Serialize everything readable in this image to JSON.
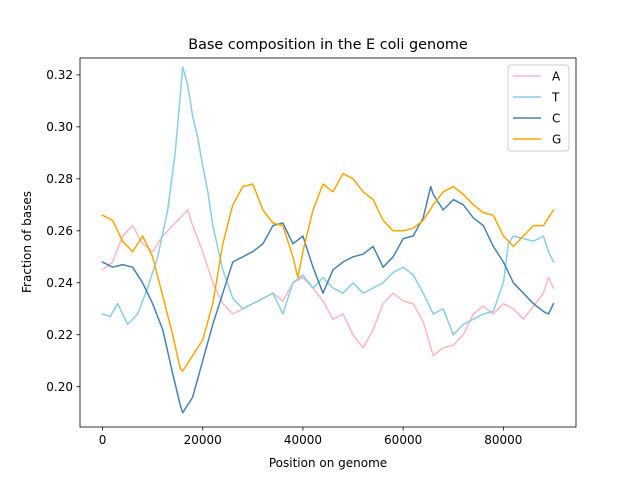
{
  "chart_data": {
    "type": "line",
    "title": "Base composition in the E coli genome",
    "xlabel": "Position on genome",
    "ylabel": "Fraction of bases",
    "xlim": [
      -4500,
      94500
    ],
    "ylim": [
      0.1845,
      0.3265
    ],
    "xticks": [
      0,
      20000,
      40000,
      60000,
      80000
    ],
    "yticks": [
      0.2,
      0.22,
      0.24,
      0.26,
      0.28,
      0.3,
      0.32
    ],
    "ytick_labels": [
      "0.20",
      "0.22",
      "0.24",
      "0.26",
      "0.28",
      "0.30",
      "0.32"
    ],
    "grid": false,
    "legend_position": "top-right",
    "series": [
      {
        "name": "A",
        "color": "#ffb6c1",
        "points": [
          [
            0,
            0.245
          ],
          [
            2000,
            0.248
          ],
          [
            4000,
            0.258
          ],
          [
            6000,
            0.262
          ],
          [
            8000,
            0.255
          ],
          [
            10000,
            0.252
          ],
          [
            12000,
            0.258
          ],
          [
            14000,
            0.262
          ],
          [
            16000,
            0.266
          ],
          [
            17000,
            0.268
          ],
          [
            18000,
            0.262
          ],
          [
            20000,
            0.252
          ],
          [
            22000,
            0.24
          ],
          [
            24000,
            0.232
          ],
          [
            26000,
            0.228
          ],
          [
            28000,
            0.23
          ],
          [
            30000,
            0.232
          ],
          [
            32000,
            0.234
          ],
          [
            34000,
            0.236
          ],
          [
            36000,
            0.233
          ],
          [
            38000,
            0.24
          ],
          [
            40000,
            0.242
          ],
          [
            42000,
            0.238
          ],
          [
            44000,
            0.233
          ],
          [
            46000,
            0.226
          ],
          [
            48000,
            0.228
          ],
          [
            50000,
            0.22
          ],
          [
            52000,
            0.215
          ],
          [
            54000,
            0.222
          ],
          [
            56000,
            0.232
          ],
          [
            58000,
            0.236
          ],
          [
            60000,
            0.233
          ],
          [
            62000,
            0.232
          ],
          [
            64000,
            0.225
          ],
          [
            66000,
            0.212
          ],
          [
            68000,
            0.215
          ],
          [
            70000,
            0.216
          ],
          [
            72000,
            0.22
          ],
          [
            74000,
            0.228
          ],
          [
            76000,
            0.231
          ],
          [
            78000,
            0.228
          ],
          [
            80000,
            0.232
          ],
          [
            82000,
            0.23
          ],
          [
            84000,
            0.226
          ],
          [
            86000,
            0.231
          ],
          [
            88000,
            0.236
          ],
          [
            89000,
            0.242
          ],
          [
            90000,
            0.238
          ]
        ]
      },
      {
        "name": "T",
        "color": "#87ceeb",
        "points": [
          [
            0,
            0.228
          ],
          [
            1500,
            0.227
          ],
          [
            3000,
            0.232
          ],
          [
            5000,
            0.224
          ],
          [
            7000,
            0.228
          ],
          [
            9000,
            0.238
          ],
          [
            11000,
            0.25
          ],
          [
            13000,
            0.268
          ],
          [
            14500,
            0.29
          ],
          [
            15500,
            0.312
          ],
          [
            16000,
            0.323
          ],
          [
            17000,
            0.316
          ],
          [
            18000,
            0.304
          ],
          [
            19000,
            0.296
          ],
          [
            20000,
            0.285
          ],
          [
            21000,
            0.275
          ],
          [
            22000,
            0.262
          ],
          [
            24000,
            0.245
          ],
          [
            26000,
            0.234
          ],
          [
            28000,
            0.23
          ],
          [
            30000,
            0.232
          ],
          [
            32000,
            0.234
          ],
          [
            34000,
            0.236
          ],
          [
            36000,
            0.228
          ],
          [
            38000,
            0.24
          ],
          [
            40000,
            0.243
          ],
          [
            42000,
            0.238
          ],
          [
            44000,
            0.242
          ],
          [
            46000,
            0.238
          ],
          [
            48000,
            0.236
          ],
          [
            50000,
            0.24
          ],
          [
            52000,
            0.236
          ],
          [
            54000,
            0.238
          ],
          [
            56000,
            0.24
          ],
          [
            58000,
            0.244
          ],
          [
            60000,
            0.246
          ],
          [
            62000,
            0.243
          ],
          [
            64000,
            0.236
          ],
          [
            66000,
            0.228
          ],
          [
            68000,
            0.23
          ],
          [
            70000,
            0.22
          ],
          [
            72000,
            0.224
          ],
          [
            74000,
            0.226
          ],
          [
            76000,
            0.228
          ],
          [
            78000,
            0.229
          ],
          [
            80000,
            0.24
          ],
          [
            81000,
            0.255
          ],
          [
            82000,
            0.258
          ],
          [
            84000,
            0.257
          ],
          [
            86000,
            0.256
          ],
          [
            88000,
            0.258
          ],
          [
            89000,
            0.252
          ],
          [
            90000,
            0.248
          ]
        ]
      },
      {
        "name": "C",
        "color": "#4682b4",
        "points": [
          [
            0,
            0.248
          ],
          [
            2000,
            0.246
          ],
          [
            4000,
            0.247
          ],
          [
            6000,
            0.246
          ],
          [
            8000,
            0.24
          ],
          [
            10000,
            0.232
          ],
          [
            12000,
            0.222
          ],
          [
            14000,
            0.205
          ],
          [
            15500,
            0.193
          ],
          [
            16000,
            0.19
          ],
          [
            18000,
            0.196
          ],
          [
            20000,
            0.21
          ],
          [
            22000,
            0.224
          ],
          [
            24000,
            0.236
          ],
          [
            26000,
            0.248
          ],
          [
            28000,
            0.25
          ],
          [
            30000,
            0.252
          ],
          [
            32000,
            0.255
          ],
          [
            34000,
            0.262
          ],
          [
            36000,
            0.263
          ],
          [
            38000,
            0.255
          ],
          [
            40000,
            0.258
          ],
          [
            42000,
            0.246
          ],
          [
            44000,
            0.236
          ],
          [
            46000,
            0.245
          ],
          [
            48000,
            0.248
          ],
          [
            50000,
            0.25
          ],
          [
            52000,
            0.251
          ],
          [
            54000,
            0.254
          ],
          [
            56000,
            0.246
          ],
          [
            58000,
            0.25
          ],
          [
            60000,
            0.257
          ],
          [
            62000,
            0.258
          ],
          [
            64000,
            0.265
          ],
          [
            65500,
            0.277
          ],
          [
            66000,
            0.274
          ],
          [
            68000,
            0.268
          ],
          [
            70000,
            0.272
          ],
          [
            72000,
            0.27
          ],
          [
            74000,
            0.265
          ],
          [
            76000,
            0.262
          ],
          [
            78000,
            0.254
          ],
          [
            80000,
            0.248
          ],
          [
            82000,
            0.24
          ],
          [
            84000,
            0.236
          ],
          [
            86000,
            0.232
          ],
          [
            88000,
            0.229
          ],
          [
            89000,
            0.228
          ],
          [
            90000,
            0.232
          ]
        ]
      },
      {
        "name": "G",
        "color": "#ffa500",
        "points": [
          [
            0,
            0.266
          ],
          [
            2000,
            0.264
          ],
          [
            4000,
            0.256
          ],
          [
            6000,
            0.252
          ],
          [
            8000,
            0.258
          ],
          [
            10000,
            0.25
          ],
          [
            12000,
            0.235
          ],
          [
            14000,
            0.22
          ],
          [
            15500,
            0.207
          ],
          [
            16000,
            0.206
          ],
          [
            18000,
            0.212
          ],
          [
            20000,
            0.218
          ],
          [
            22000,
            0.232
          ],
          [
            24000,
            0.255
          ],
          [
            26000,
            0.27
          ],
          [
            28000,
            0.277
          ],
          [
            30000,
            0.278
          ],
          [
            32000,
            0.268
          ],
          [
            34000,
            0.263
          ],
          [
            36000,
            0.262
          ],
          [
            38000,
            0.25
          ],
          [
            39000,
            0.242
          ],
          [
            40000,
            0.252
          ],
          [
            42000,
            0.268
          ],
          [
            44000,
            0.278
          ],
          [
            46000,
            0.275
          ],
          [
            48000,
            0.282
          ],
          [
            50000,
            0.28
          ],
          [
            52000,
            0.275
          ],
          [
            54000,
            0.272
          ],
          [
            56000,
            0.264
          ],
          [
            58000,
            0.26
          ],
          [
            60000,
            0.26
          ],
          [
            62000,
            0.261
          ],
          [
            64000,
            0.264
          ],
          [
            66000,
            0.27
          ],
          [
            68000,
            0.275
          ],
          [
            70000,
            0.277
          ],
          [
            72000,
            0.274
          ],
          [
            74000,
            0.27
          ],
          [
            76000,
            0.267
          ],
          [
            78000,
            0.266
          ],
          [
            80000,
            0.258
          ],
          [
            82000,
            0.254
          ],
          [
            84000,
            0.258
          ],
          [
            86000,
            0.262
          ],
          [
            88000,
            0.262
          ],
          [
            89000,
            0.265
          ],
          [
            90000,
            0.268
          ]
        ]
      }
    ]
  }
}
